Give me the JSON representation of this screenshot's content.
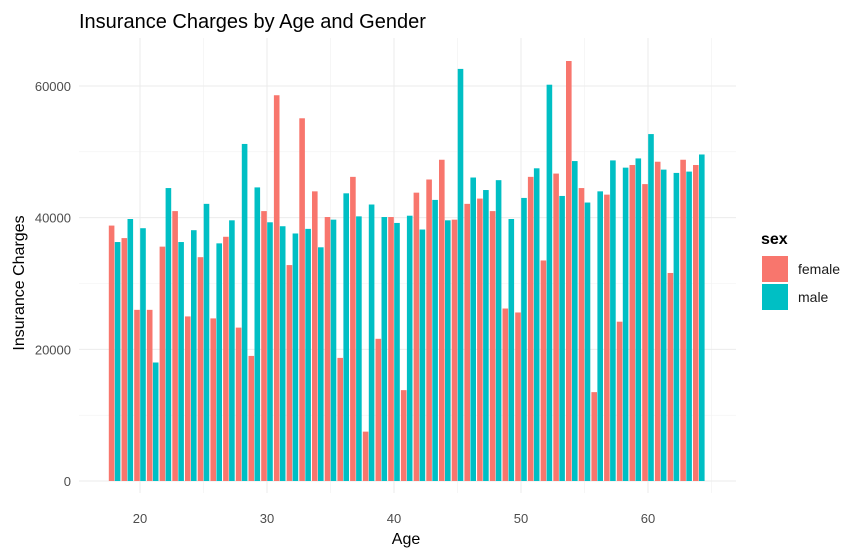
{
  "chart_data": {
    "type": "bar",
    "title": "Insurance Charges by Age and Gender",
    "xlabel": "Age",
    "ylabel": "Insurance Charges",
    "xlim": [
      17,
      65
    ],
    "ylim": [
      0,
      65000
    ],
    "x_ticks": [
      20,
      30,
      40,
      50,
      60
    ],
    "y_ticks": [
      0,
      20000,
      40000,
      60000
    ],
    "grid": true,
    "legend": {
      "title": "sex",
      "position": "right"
    },
    "x": [
      18,
      19,
      20,
      21,
      22,
      23,
      24,
      25,
      26,
      27,
      28,
      29,
      30,
      31,
      32,
      33,
      34,
      35,
      36,
      37,
      38,
      39,
      40,
      41,
      42,
      43,
      44,
      45,
      46,
      47,
      48,
      49,
      50,
      51,
      52,
      53,
      54,
      55,
      56,
      57,
      58,
      59,
      60,
      61,
      62,
      63,
      64
    ],
    "series": [
      {
        "name": "female",
        "color": "#F8766D",
        "values": [
          38800,
          36900,
          26000,
          26000,
          35600,
          41000,
          25000,
          34000,
          24700,
          37100,
          23300,
          19000,
          41000,
          58600,
          32800,
          55100,
          44000,
          40100,
          18700,
          46200,
          7500,
          21600,
          40100,
          13800,
          43800,
          45800,
          48800,
          39700,
          42100,
          42900,
          41000,
          26200,
          25600,
          46200,
          33500,
          46700,
          63800,
          44500,
          13500,
          43500,
          24200,
          48000,
          45100,
          48500,
          31600,
          48800,
          48000
        ]
      },
      {
        "name": "male",
        "color": "#00BFC4",
        "values": [
          36300,
          39800,
          38400,
          18000,
          44500,
          36300,
          38100,
          42100,
          36100,
          39600,
          51200,
          44600,
          39300,
          38700,
          37600,
          38300,
          35500,
          39700,
          43700,
          40200,
          42000,
          40100,
          39200,
          40300,
          38200,
          42700,
          39600,
          62600,
          46100,
          44200,
          45700,
          39800,
          43000,
          47500,
          60200,
          43300,
          48600,
          42300,
          44000,
          48700,
          47600,
          49000,
          52700,
          47300,
          46800,
          47000,
          49600
        ]
      }
    ]
  }
}
